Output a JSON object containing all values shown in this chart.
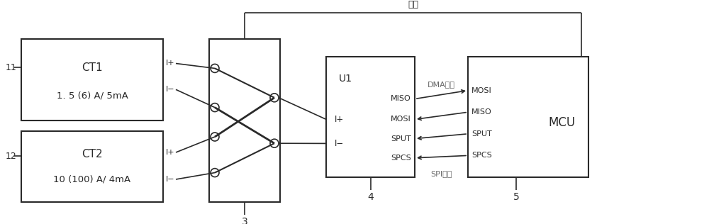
{
  "bg_color": "#ffffff",
  "line_color": "#2a2a2a",
  "text_color": "#2a2a2a",
  "gray_text": "#666666",
  "figsize": [
    10.0,
    3.16
  ],
  "dpi": 100,
  "ct1_label": "CT1",
  "ct1_sublabel": "1. 5 (6) A/ 5mA",
  "ct2_label": "CT2",
  "ct2_sublabel": "10 (100) A/ 4mA",
  "label_11": "11",
  "label_12": "12",
  "label_3": "3",
  "label_4": "4",
  "label_5": "5",
  "label_u1": "U1",
  "label_mcu": "MCU",
  "label_control": "控制",
  "label_dma": "DMA传输",
  "label_spi": "SPI总线",
  "u1_right_labels": [
    "MISO",
    "MOSI",
    "SPUT",
    "SPCS"
  ],
  "mcu_left_labels": [
    "MOSI",
    "MISO",
    "SPUT",
    "SPCS"
  ]
}
